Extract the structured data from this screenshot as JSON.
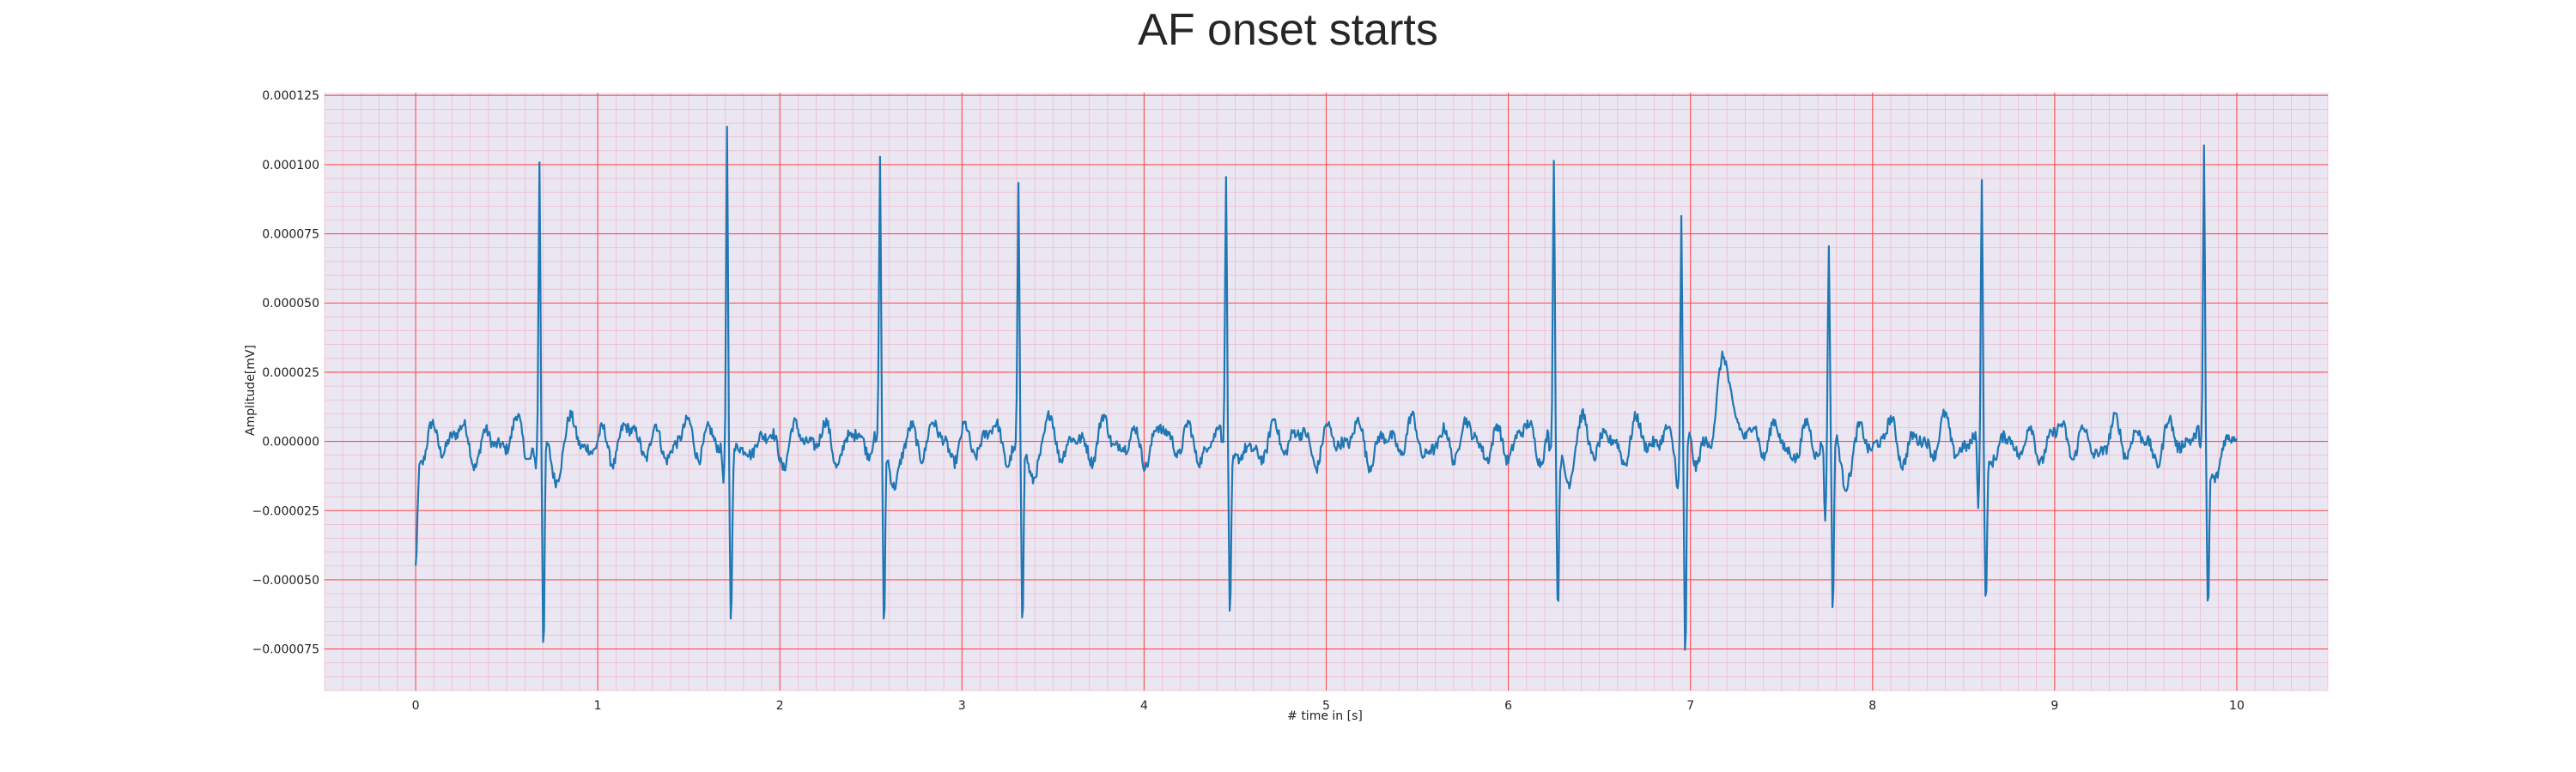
{
  "chart_data": {
    "type": "line",
    "title": "AF onset starts",
    "xlabel": "# time in [s]",
    "ylabel": "Amplitude[mV]",
    "xlim": [
      -0.5,
      10.5
    ],
    "ylim": [
      -9e-05,
      0.000126
    ],
    "x_ticks": [
      0,
      1,
      2,
      3,
      4,
      5,
      6,
      7,
      8,
      9,
      10
    ],
    "x_tick_labels": [
      "0",
      "1",
      "2",
      "3",
      "4",
      "5",
      "6",
      "7",
      "8",
      "9",
      "10"
    ],
    "y_ticks": [
      -7.5e-05,
      -5e-05,
      -2.5e-05,
      0,
      2.5e-05,
      5e-05,
      7.5e-05,
      0.0001,
      0.000125
    ],
    "y_tick_labels": [
      "−0.000075",
      "−0.000050",
      "−0.000025",
      "0.000000",
      "0.000025",
      "0.000050",
      "0.000075",
      "0.000100",
      "0.000125"
    ],
    "grid": {
      "major": true,
      "minor": true,
      "major_color": "#ff4d4d",
      "minor_color": "#f2b6c8"
    },
    "background_color": "#eae6f2",
    "line_color": "#1f77b4",
    "beats": [
      {
        "t": 0.68,
        "r": 0.0001,
        "s": -7.6e-05,
        "q": -8e-06
      },
      {
        "t": 1.71,
        "r": 0.000117,
        "s": -6e-05,
        "q": -1e-05
      },
      {
        "t": 2.55,
        "r": 9.3e-05,
        "s": -7.3e-05,
        "q": -8e-06
      },
      {
        "t": 3.31,
        "r": 8.7e-05,
        "s": -6.7e-05,
        "q": -6e-06
      },
      {
        "t": 4.45,
        "r": 9.7e-05,
        "s": -5.8e-05,
        "q": -8e-06
      },
      {
        "t": 6.25,
        "r": 0.000101,
        "s": -6e-05,
        "q": -9e-06
      },
      {
        "t": 6.95,
        "r": 8.8e-05,
        "s": -8.2e-05,
        "q": -8e-06
      },
      {
        "t": 7.76,
        "r": 6.7e-05,
        "s": -6.5e-05,
        "q": -3.4e-05
      },
      {
        "t": 8.6,
        "r": 9.8e-05,
        "s": -5.3e-05,
        "q": -2.6e-05
      },
      {
        "t": 9.82,
        "r": 0.000104,
        "s": -5.5e-05,
        "q": -6e-06
      }
    ],
    "start_value": -4.4e-05,
    "end_value": 1e-06,
    "baseline_wave": {
      "amplitude": 8.5e-06,
      "frequency_hz": 6.5
    },
    "extra_waves": [
      {
        "t": 7.2,
        "peak": 2.8e-05
      }
    ],
    "sample_rate_hz": 200
  }
}
